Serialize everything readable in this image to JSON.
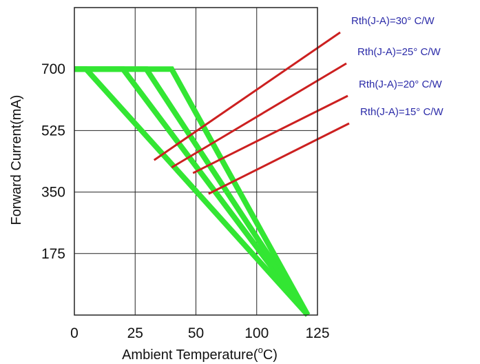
{
  "chart_data": {
    "type": "line",
    "xlabel": "Ambient Temperature(",
    "xlabel_degree": "o",
    "xlabel_unit": "C)",
    "ylabel": "Forward Current(mA)",
    "xlim": [
      0,
      125
    ],
    "ylim": [
      0,
      875
    ],
    "x_ticks": [
      "0",
      "25",
      "50",
      "100",
      "125"
    ],
    "y_ticks": [
      "175",
      "350",
      "525",
      "700"
    ],
    "grid": true,
    "line_color": "#33e633",
    "pointer_color": "#cc2020",
    "label_color": "#2a2aa8",
    "series": [
      {
        "name": "Rth(J-A)=30° C/W",
        "x": [
          0,
          6,
          120
        ],
        "y": [
          700,
          700,
          0
        ],
        "pointer_at": [
          41,
          441
        ]
      },
      {
        "name": "Rth(J-A)=25° C/W",
        "x": [
          0,
          25,
          120
        ],
        "y": [
          700,
          700,
          0
        ],
        "pointer_at": [
          50,
          420
        ]
      },
      {
        "name": "Rth(J-A)=20° C/W",
        "x": [
          0,
          37,
          120
        ],
        "y": [
          700,
          700,
          0
        ],
        "pointer_at": [
          61,
          404
        ]
      },
      {
        "name": "Rth(J-A)=15° C/W",
        "x": [
          0,
          50,
          120
        ],
        "y": [
          700,
          700,
          0
        ],
        "pointer_at": [
          69,
          345
        ]
      }
    ]
  }
}
